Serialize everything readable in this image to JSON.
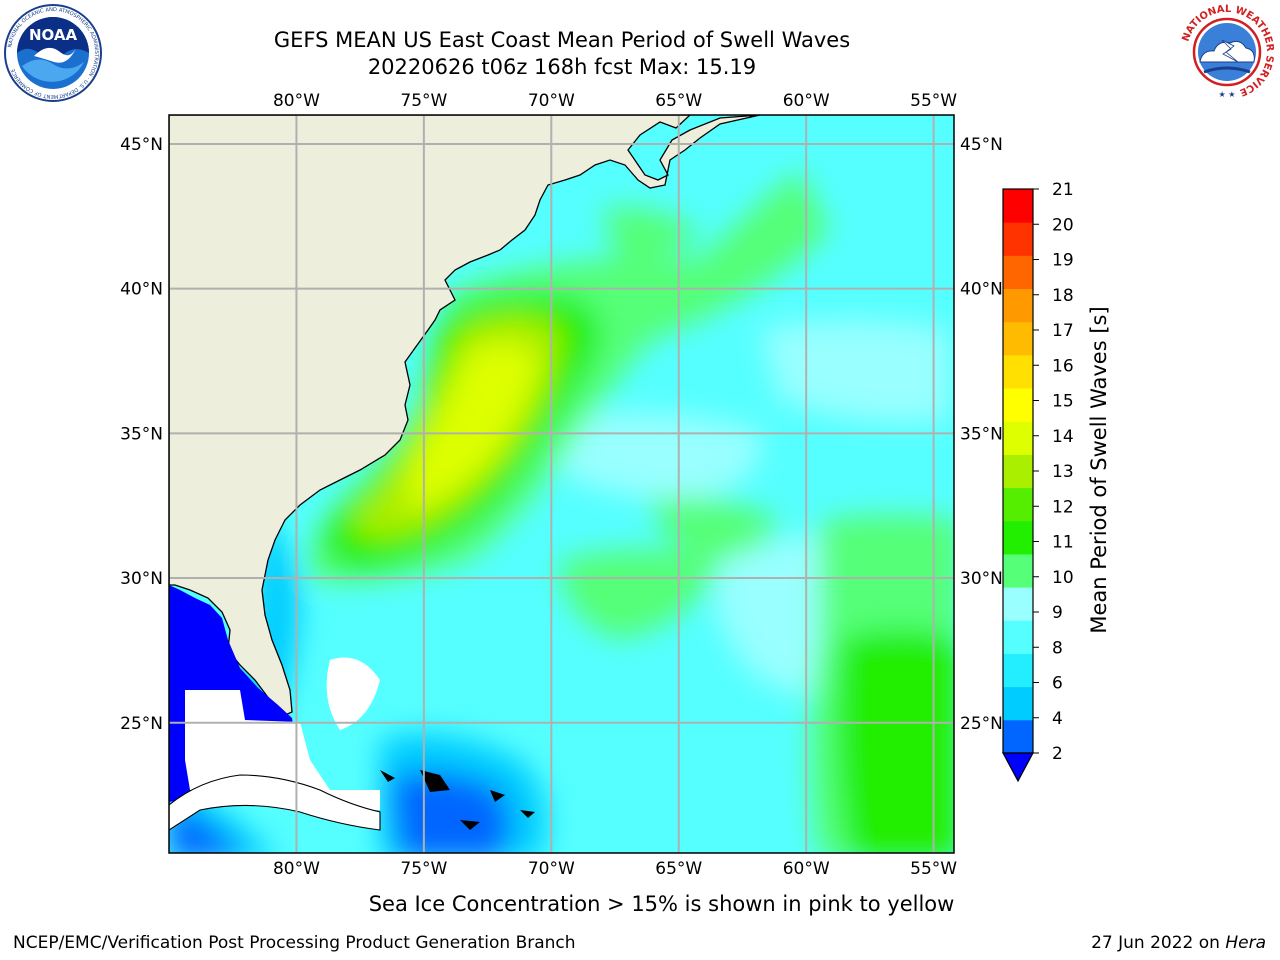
{
  "title": {
    "line1": "GEFS MEAN US East Coast Mean Period of Swell Waves",
    "line2": "20220626 t06z 168h fcst   Max: 15.19"
  },
  "logos": {
    "left": "NOAA",
    "left_ring_text": "NATIONAL OCEANIC AND ATMOSPHERIC ADMINISTRATION · U.S. DEPARTMENT OF COMMERCE",
    "right_ring_text": "NATIONAL WEATHER SERVICE"
  },
  "map": {
    "lon_labels": [
      "80°W",
      "75°W",
      "70°W",
      "65°W",
      "60°W",
      "55°W"
    ],
    "lat_labels": [
      "45°N",
      "40°N",
      "35°N",
      "30°N",
      "25°N"
    ],
    "lon_values": [
      -80,
      -75,
      -70,
      -65,
      -60,
      -55
    ],
    "lat_values": [
      45,
      40,
      35,
      30,
      25
    ],
    "extent": {
      "lon_min": -85,
      "lon_max": -54.2,
      "lat_min": 20.5,
      "lat_max": 46
    },
    "gridlines": true
  },
  "colorbar": {
    "label": "Mean Period of Swell Waves [s]",
    "ticks": [
      "21",
      "20",
      "19",
      "18",
      "17",
      "16",
      "15",
      "14",
      "13",
      "12",
      "11",
      "10",
      "9",
      "8",
      "6",
      "4",
      "2"
    ],
    "levels": [
      2,
      4,
      6,
      8,
      9,
      10,
      11,
      12,
      13,
      14,
      15,
      16,
      17,
      18,
      19,
      20,
      21
    ],
    "colors": [
      "#0066ff",
      "#00ccff",
      "#22eeff",
      "#55ffff",
      "#99ffff",
      "#55ff77",
      "#22ee00",
      "#55ee00",
      "#aaee00",
      "#ddff00",
      "#ffff00",
      "#ffe000",
      "#ffbb00",
      "#ff9900",
      "#ff6600",
      "#ff3300",
      "#ff0000"
    ],
    "extend_color": "#0000ff"
  },
  "colors": {
    "land": "#eeeedd",
    "missing": "#ffffff",
    "grid": "#b0b0b0",
    "coast": "#000000"
  },
  "subtitle": "Sea Ice Concentration > 15% is shown in pink to yellow",
  "footer": {
    "left": "NCEP/EMC/Verification Post Processing Product Generation Branch",
    "right_date": "27 Jun 2022 on",
    "right_machine": "Hera"
  }
}
